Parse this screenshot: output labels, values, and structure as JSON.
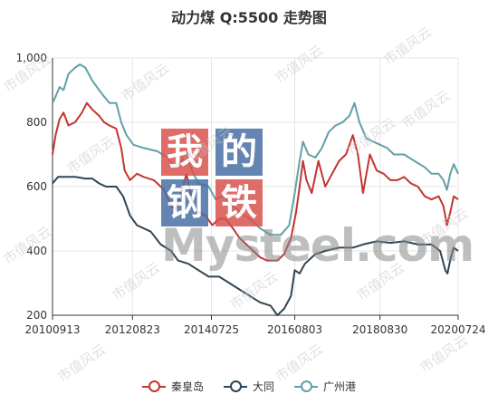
{
  "chart_data": {
    "type": "line",
    "title": "动力煤 Q:5500 走势图",
    "ylim": [
      200,
      1000
    ],
    "yticks": [
      200,
      400,
      600,
      800,
      1000
    ],
    "ytick_labels": [
      "200",
      "400",
      "600",
      "800",
      "1,000"
    ],
    "xlim": [
      "2010-09-13",
      "2020-07-24"
    ],
    "xtick_labels": [
      "20100913",
      "20120823",
      "20140725",
      "20160803",
      "20180830",
      "20200724"
    ],
    "xticks": [
      "2010-09-13",
      "2012-08-23",
      "2014-07-25",
      "2016-08-03",
      "2018-08-30",
      "2020-07-24"
    ],
    "grid": true,
    "legend_position": "bottom",
    "series": [
      {
        "name": "秦皇岛",
        "color": "#c23531",
        "points": [
          [
            "2010-09-13",
            700
          ],
          [
            "2010-10-10",
            760
          ],
          [
            "2010-11-15",
            810
          ],
          [
            "2010-12-20",
            830
          ],
          [
            "2011-02-01",
            790
          ],
          [
            "2011-04-01",
            800
          ],
          [
            "2011-06-01",
            830
          ],
          [
            "2011-07-15",
            860
          ],
          [
            "2011-09-01",
            840
          ],
          [
            "2011-11-01",
            820
          ],
          [
            "2011-12-15",
            800
          ],
          [
            "2012-02-01",
            790
          ],
          [
            "2012-04-01",
            780
          ],
          [
            "2012-05-15",
            720
          ],
          [
            "2012-06-15",
            650
          ],
          [
            "2012-08-01",
            620
          ],
          [
            "2012-10-01",
            640
          ],
          [
            "2012-12-01",
            630
          ],
          [
            "2013-03-01",
            620
          ],
          [
            "2013-06-01",
            590
          ],
          [
            "2013-08-01",
            540
          ],
          [
            "2013-09-15",
            530
          ],
          [
            "2013-11-15",
            600
          ],
          [
            "2013-12-15",
            640
          ],
          [
            "2014-02-01",
            560
          ],
          [
            "2014-04-01",
            520
          ],
          [
            "2014-06-01",
            510
          ],
          [
            "2014-08-01",
            480
          ],
          [
            "2014-10-01",
            500
          ],
          [
            "2014-12-01",
            500
          ],
          [
            "2015-02-01",
            470
          ],
          [
            "2015-04-01",
            440
          ],
          [
            "2015-06-01",
            420
          ],
          [
            "2015-08-01",
            400
          ],
          [
            "2015-10-01",
            380
          ],
          [
            "2015-12-01",
            370
          ],
          [
            "2016-03-01",
            370
          ],
          [
            "2016-05-01",
            390
          ],
          [
            "2016-07-01",
            440
          ],
          [
            "2016-08-15",
            520
          ],
          [
            "2016-09-15",
            600
          ],
          [
            "2016-10-15",
            680
          ],
          [
            "2016-11-15",
            620
          ],
          [
            "2017-01-01",
            580
          ],
          [
            "2017-03-01",
            680
          ],
          [
            "2017-05-01",
            600
          ],
          [
            "2017-07-01",
            640
          ],
          [
            "2017-09-01",
            680
          ],
          [
            "2017-11-01",
            700
          ],
          [
            "2018-01-01",
            760
          ],
          [
            "2018-02-15",
            700
          ],
          [
            "2018-04-01",
            580
          ],
          [
            "2018-06-01",
            700
          ],
          [
            "2018-08-01",
            650
          ],
          [
            "2018-10-01",
            640
          ],
          [
            "2018-12-01",
            620
          ],
          [
            "2019-02-01",
            620
          ],
          [
            "2019-04-01",
            630
          ],
          [
            "2019-06-01",
            610
          ],
          [
            "2019-08-01",
            600
          ],
          [
            "2019-10-01",
            570
          ],
          [
            "2019-12-01",
            560
          ],
          [
            "2020-02-01",
            570
          ],
          [
            "2020-03-15",
            540
          ],
          [
            "2020-04-15",
            480
          ],
          [
            "2020-05-15",
            520
          ],
          [
            "2020-06-15",
            570
          ],
          [
            "2020-07-24",
            560
          ]
        ]
      },
      {
        "name": "大同",
        "color": "#2f4554",
        "points": [
          [
            "2010-09-13",
            610
          ],
          [
            "2010-11-01",
            630
          ],
          [
            "2011-04-01",
            630
          ],
          [
            "2011-07-01",
            625
          ],
          [
            "2011-09-01",
            625
          ],
          [
            "2011-11-01",
            610
          ],
          [
            "2012-01-01",
            600
          ],
          [
            "2012-04-01",
            600
          ],
          [
            "2012-06-01",
            570
          ],
          [
            "2012-08-01",
            510
          ],
          [
            "2012-10-01",
            480
          ],
          [
            "2013-02-01",
            460
          ],
          [
            "2013-05-01",
            420
          ],
          [
            "2013-08-01",
            400
          ],
          [
            "2013-10-01",
            370
          ],
          [
            "2014-01-01",
            360
          ],
          [
            "2014-04-01",
            340
          ],
          [
            "2014-07-01",
            320
          ],
          [
            "2014-10-01",
            320
          ],
          [
            "2015-01-01",
            300
          ],
          [
            "2015-04-01",
            280
          ],
          [
            "2015-07-01",
            260
          ],
          [
            "2015-10-01",
            240
          ],
          [
            "2016-01-01",
            230
          ],
          [
            "2016-03-01",
            200
          ],
          [
            "2016-05-01",
            220
          ],
          [
            "2016-07-01",
            260
          ],
          [
            "2016-08-03",
            340
          ],
          [
            "2016-09-15",
            330
          ],
          [
            "2016-11-01",
            360
          ],
          [
            "2017-02-01",
            390
          ],
          [
            "2017-05-01",
            400
          ],
          [
            "2017-09-01",
            410
          ],
          [
            "2018-01-01",
            410
          ],
          [
            "2018-04-01",
            420
          ],
          [
            "2018-08-01",
            430
          ],
          [
            "2018-12-01",
            425
          ],
          [
            "2019-04-01",
            430
          ],
          [
            "2019-08-01",
            420
          ],
          [
            "2019-12-01",
            420
          ],
          [
            "2020-02-15",
            400
          ],
          [
            "2020-04-01",
            340
          ],
          [
            "2020-04-20",
            330
          ],
          [
            "2020-05-20",
            380
          ],
          [
            "2020-06-15",
            410
          ],
          [
            "2020-07-24",
            400
          ]
        ]
      },
      {
        "name": "广州港",
        "color": "#61a0a8",
        "points": [
          [
            "2010-09-13",
            860
          ],
          [
            "2010-10-10",
            880
          ],
          [
            "2010-11-15",
            910
          ],
          [
            "2010-12-20",
            900
          ],
          [
            "2011-02-01",
            950
          ],
          [
            "2011-04-01",
            970
          ],
          [
            "2011-05-15",
            980
          ],
          [
            "2011-07-01",
            970
          ],
          [
            "2011-09-01",
            930
          ],
          [
            "2011-11-01",
            900
          ],
          [
            "2011-12-15",
            880
          ],
          [
            "2012-02-01",
            860
          ],
          [
            "2012-04-01",
            860
          ],
          [
            "2012-05-15",
            800
          ],
          [
            "2012-07-01",
            760
          ],
          [
            "2012-09-01",
            730
          ],
          [
            "2012-12-01",
            720
          ],
          [
            "2013-04-01",
            710
          ],
          [
            "2013-07-01",
            690
          ],
          [
            "2013-09-01",
            660
          ],
          [
            "2013-11-01",
            680
          ],
          [
            "2013-12-15",
            700
          ],
          [
            "2014-02-01",
            650
          ],
          [
            "2014-04-01",
            610
          ],
          [
            "2014-07-01",
            600
          ],
          [
            "2014-09-01",
            560
          ],
          [
            "2014-11-01",
            570
          ],
          [
            "2015-01-01",
            550
          ],
          [
            "2015-04-01",
            520
          ],
          [
            "2015-07-01",
            500
          ],
          [
            "2015-10-01",
            470
          ],
          [
            "2016-01-01",
            450
          ],
          [
            "2016-04-01",
            450
          ],
          [
            "2016-06-15",
            480
          ],
          [
            "2016-08-03",
            580
          ],
          [
            "2016-09-15",
            680
          ],
          [
            "2016-10-15",
            740
          ],
          [
            "2016-12-01",
            700
          ],
          [
            "2017-02-01",
            690
          ],
          [
            "2017-04-01",
            720
          ],
          [
            "2017-06-01",
            770
          ],
          [
            "2017-08-01",
            790
          ],
          [
            "2017-10-01",
            800
          ],
          [
            "2017-12-01",
            820
          ],
          [
            "2018-01-15",
            860
          ],
          [
            "2018-03-01",
            800
          ],
          [
            "2018-05-01",
            750
          ],
          [
            "2018-07-01",
            740
          ],
          [
            "2018-09-01",
            730
          ],
          [
            "2018-11-01",
            720
          ],
          [
            "2019-01-01",
            700
          ],
          [
            "2019-04-01",
            700
          ],
          [
            "2019-07-01",
            680
          ],
          [
            "2019-10-01",
            660
          ],
          [
            "2019-12-01",
            640
          ],
          [
            "2020-02-01",
            640
          ],
          [
            "2020-03-15",
            620
          ],
          [
            "2020-04-15",
            590
          ],
          [
            "2020-05-15",
            640
          ],
          [
            "2020-06-15",
            670
          ],
          [
            "2020-07-24",
            640
          ]
        ]
      }
    ]
  },
  "watermark": {
    "logo_chars": [
      "我",
      "的",
      "钢",
      "铁"
    ],
    "logo_word": "Mysteel.com",
    "repeat_text": "市值风云"
  }
}
